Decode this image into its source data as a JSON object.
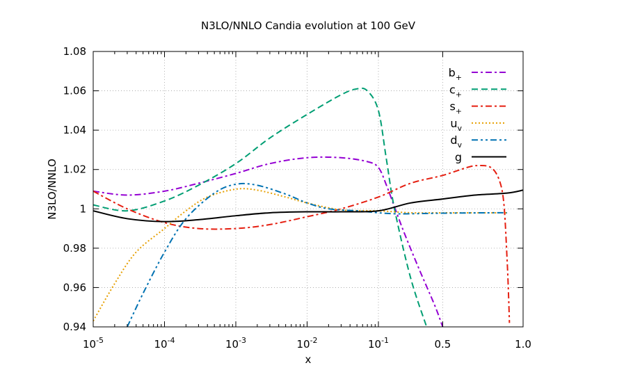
{
  "chart_data": {
    "type": "line",
    "title": "N3LO/NNLO Candia evolution at 100 GeV",
    "xlabel": "x",
    "ylabel": "N3LO/NNLO",
    "ylim": [
      0.94,
      1.08
    ],
    "grid": true,
    "legend_position": "top-right",
    "x_scale": "log-linear",
    "x_ticks": [
      {
        "value": 1e-05,
        "base": "10",
        "exp": "-5"
      },
      {
        "value": 0.0001,
        "base": "10",
        "exp": "-4"
      },
      {
        "value": 0.001,
        "base": "10",
        "exp": "-3"
      },
      {
        "value": 0.01,
        "base": "10",
        "exp": "-2"
      },
      {
        "value": 0.1,
        "base": "10",
        "exp": "-1"
      },
      {
        "value": 0.5,
        "base": "0.5",
        "exp": ""
      },
      {
        "value": 1.0,
        "base": "1.0",
        "exp": ""
      }
    ],
    "y_ticks": [
      "0.94",
      "0.96",
      "0.98",
      "1",
      "1.02",
      "1.04",
      "1.06",
      "1.08"
    ],
    "series": [
      {
        "name": "b",
        "sub": "+",
        "color": "#9400d3",
        "dash": "9,4,3,4",
        "x": [
          1e-05,
          3e-05,
          0.0001,
          0.0003,
          0.001,
          0.003,
          0.01,
          0.03,
          0.07,
          0.1,
          0.15,
          0.25,
          0.35,
          0.45,
          0.5
        ],
        "y": [
          1.009,
          1.007,
          1.009,
          1.013,
          1.018,
          1.023,
          1.026,
          1.026,
          1.024,
          1.021,
          1.012,
          0.99,
          0.97,
          0.951,
          0.94
        ]
      },
      {
        "name": "c",
        "sub": "+",
        "color": "#009e73",
        "dash": "9,5",
        "x": [
          1e-05,
          3e-05,
          0.0001,
          0.0003,
          0.001,
          0.003,
          0.01,
          0.03,
          0.05,
          0.07,
          0.1,
          0.15,
          0.2,
          0.3,
          0.4
        ],
        "y": [
          1.002,
          0.999,
          1.004,
          1.012,
          1.023,
          1.036,
          1.048,
          1.058,
          1.061,
          1.06,
          1.05,
          1.025,
          1.0,
          0.965,
          0.94
        ]
      },
      {
        "name": "s",
        "sub": "+",
        "color": "#e51e10",
        "dash": "9,4,3,4",
        "x": [
          1e-05,
          3e-05,
          0.0001,
          0.0003,
          0.001,
          0.003,
          0.01,
          0.03,
          0.1,
          0.3,
          0.5,
          0.65,
          0.72,
          0.8,
          0.85,
          0.88,
          0.9,
          0.91,
          0.915
        ],
        "y": [
          1.009,
          1.0,
          0.993,
          0.99,
          0.99,
          0.992,
          0.996,
          1.0,
          1.006,
          1.013,
          1.017,
          1.021,
          1.022,
          1.021,
          1.015,
          1.003,
          0.975,
          0.955,
          0.942
        ]
      },
      {
        "name": "u",
        "sub": "v",
        "color": "#e69f00",
        "dash": "2,3",
        "x": [
          1e-05,
          2e-05,
          4e-05,
          0.0001,
          0.0002,
          0.0004,
          0.001,
          0.002,
          0.005,
          0.01,
          0.03,
          0.1,
          0.3,
          0.5,
          0.8,
          0.9
        ],
        "y": [
          0.943,
          0.962,
          0.978,
          0.99,
          0.999,
          1.006,
          1.01,
          1.0095,
          1.006,
          1.003,
          0.9995,
          0.999,
          0.998,
          0.998,
          0.998,
          0.998
        ]
      },
      {
        "name": "d",
        "sub": "v",
        "color": "#0072b2",
        "dash": "9,4,3,4,3,4",
        "x": [
          3e-05,
          5e-05,
          0.0001,
          0.0002,
          0.0005,
          0.001,
          0.002,
          0.005,
          0.01,
          0.02,
          0.05,
          0.1,
          0.2,
          0.3,
          0.5,
          0.8,
          0.9
        ],
        "y": [
          0.94,
          0.957,
          0.978,
          0.995,
          1.008,
          1.0125,
          1.012,
          1.0075,
          1.003,
          1.0,
          0.999,
          0.998,
          0.9975,
          0.9975,
          0.9978,
          0.998,
          0.998
        ]
      },
      {
        "name": "g",
        "sub": "",
        "color": "#000000",
        "dash": "",
        "x": [
          1e-05,
          3e-05,
          0.0001,
          0.0003,
          0.001,
          0.003,
          0.01,
          0.03,
          0.1,
          0.3,
          0.5,
          0.7,
          0.9,
          1.0
        ],
        "y": [
          0.999,
          0.995,
          0.9935,
          0.9945,
          0.9965,
          0.998,
          0.9985,
          0.9985,
          0.999,
          1.003,
          1.005,
          1.007,
          1.008,
          1.0095
        ]
      }
    ]
  }
}
